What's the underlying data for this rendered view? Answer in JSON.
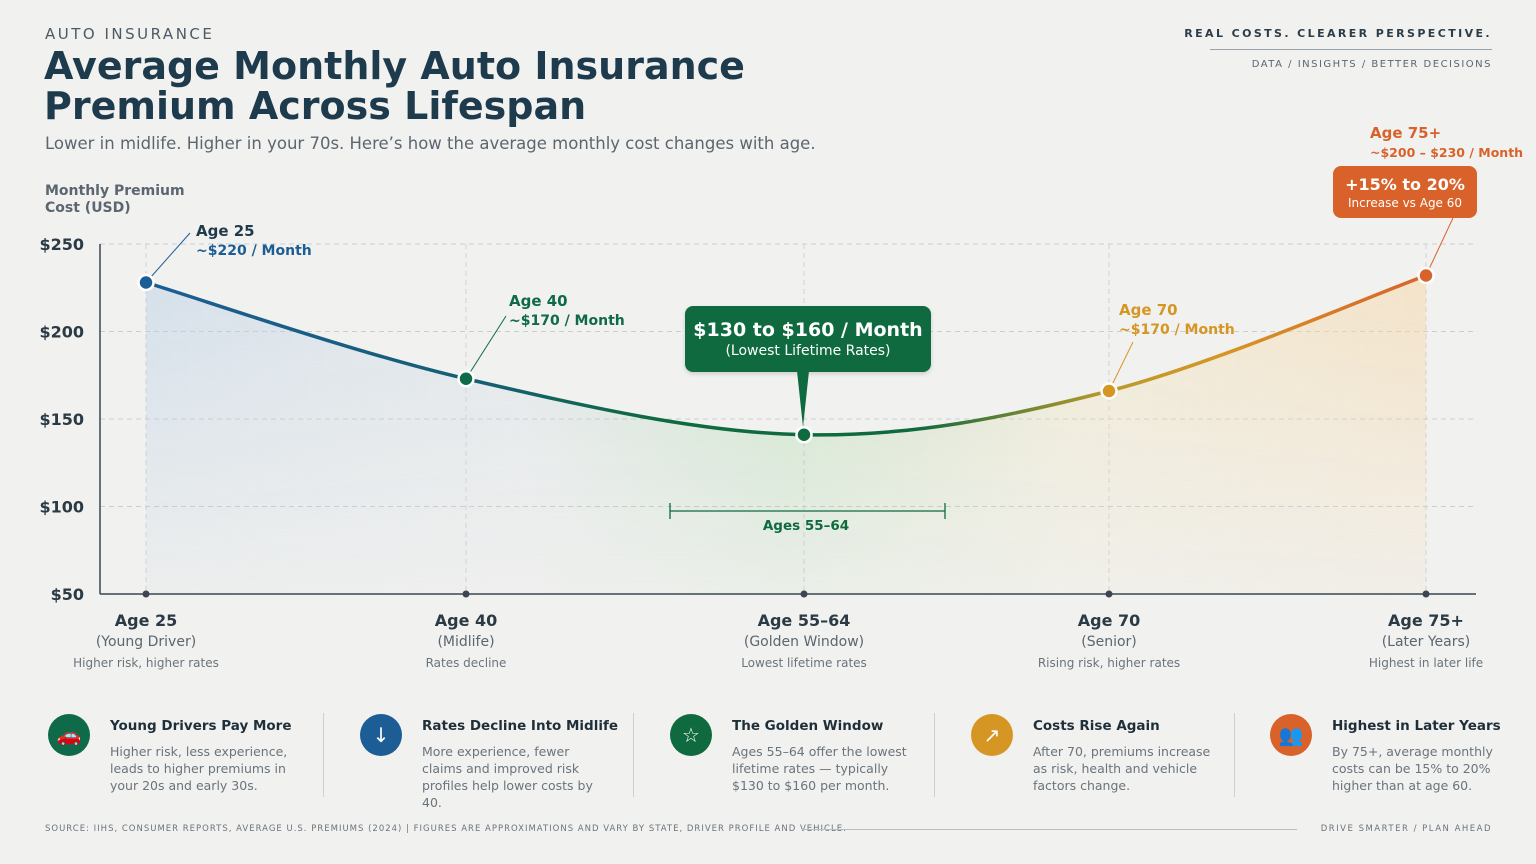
{
  "header": {
    "eyebrow": "AUTO INSURANCE",
    "title": "Average Monthly Auto Insurance Premium Across Lifespan",
    "subtitle": "Lower in midlife. Higher in your 70s. Here’s how the average monthly cost changes with age.",
    "tagline": "REAL COSTS.  CLEARER PERSPECTIVE.",
    "tagline_sub": "DATA  /  INSIGHTS  /  BETTER DECISIONS"
  },
  "chart_data": {
    "type": "line",
    "ylabel": "Monthly Premium Cost (USD)",
    "ylim": [
      50,
      250
    ],
    "yticks": [
      "$250",
      "$200",
      "$150",
      "$100",
      "$50"
    ],
    "grid": true,
    "categories": [
      {
        "label": "Age 25",
        "sub": "(Young Driver)",
        "note": "Higher risk, higher rates"
      },
      {
        "label": "Age 40",
        "sub": "(Midlife)",
        "note": "Rates decline"
      },
      {
        "label": "Age 55–64",
        "sub": "(Golden Window)",
        "note": "Lowest lifetime rates"
      },
      {
        "label": "Age 70",
        "sub": "(Senior)",
        "note": "Rising risk, higher rates"
      },
      {
        "label": "Age 75+",
        "sub": "(Later Years)",
        "note": "Highest in later life"
      }
    ],
    "series": [
      {
        "values": [
          228,
          173,
          141,
          166,
          232
        ]
      }
    ],
    "point_labels": [
      {
        "title": "Age 25",
        "value": "~$220 / Month",
        "color": "#1d5d96"
      },
      {
        "title": "Age 40",
        "value": "~$170 / Month",
        "color": "#0f6a4a"
      },
      {
        "title": "",
        "value": "",
        "color": "#0f6a3f"
      },
      {
        "title": "Age 70",
        "value": "~$170 / Month",
        "color": "#d69624"
      },
      {
        "title": "Age 75+",
        "value": "~$200 – $230 / Month",
        "color": "#d9622b"
      }
    ],
    "range_label": "Ages 55–64",
    "callout": {
      "big": "$130 to $160 / Month",
      "small": "(Lowest Lifetime Rates)"
    },
    "callout_increase": {
      "big": "+15% to 20%",
      "small": "Increase vs Age 60"
    },
    "colors": {
      "blue": "#1d5d96",
      "green": "#0f6a3f",
      "yellow": "#d69624",
      "orange": "#d9622b"
    }
  },
  "cards": [
    {
      "icon": "car-icon",
      "glyph": "🚗",
      "color": "#0f6a4a",
      "title": "Young Drivers Pay More",
      "body": "Higher risk, less experience, leads to higher premiums in your 20s and early 30s."
    },
    {
      "icon": "arrow-down-icon",
      "glyph": "↓",
      "color": "#1d5d96",
      "title": "Rates Decline Into Midlife",
      "body": "More experience, fewer claims and improved risk profiles help lower costs by 40."
    },
    {
      "icon": "star-icon",
      "glyph": "☆",
      "color": "#0f6a3f",
      "title": "The Golden Window",
      "body": "Ages 55–64 offer the lowest lifetime rates — typically $130 to $160 per month."
    },
    {
      "icon": "arrow-up-right-icon",
      "glyph": "↗",
      "color": "#d69624",
      "title": "Costs Rise Again",
      "body": "After 70, premiums increase as risk, health and vehicle factors change."
    },
    {
      "icon": "people-icon",
      "glyph": "👥",
      "color": "#d9622b",
      "title": "Highest in Later Years",
      "body": "By 75+, average monthly costs can be 15% to 20% higher than at age 60."
    }
  ],
  "footer": {
    "source": "SOURCE: IIHS, CONSUMER REPORTS, AVERAGE U.S. PREMIUMS (2024)   |   FIGURES ARE APPROXIMATIONS AND VARY BY STATE, DRIVER PROFILE AND VEHICLE.",
    "right": "DRIVE SMARTER  /  PLAN AHEAD"
  }
}
